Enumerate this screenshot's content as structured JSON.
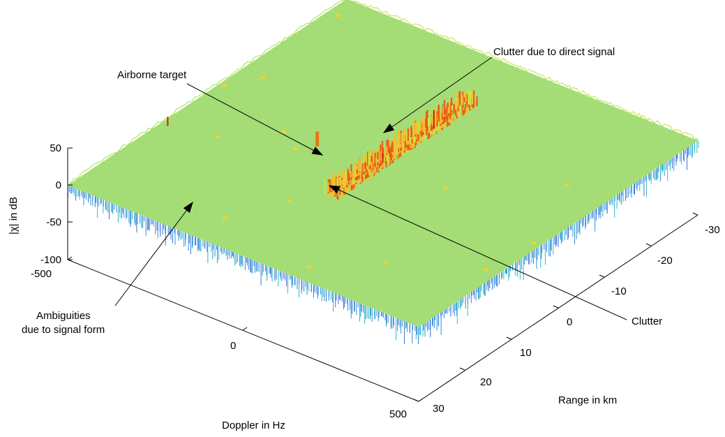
{
  "chart_data": {
    "type": "surface",
    "title": "",
    "xlabel": "Doppler in Hz",
    "ylabel": "Range in km",
    "zlabel": "|χ| in dB",
    "doppler_ticks": [
      "-500",
      "0",
      "500"
    ],
    "doppler_range": [
      -500,
      500
    ],
    "range_ticks": [
      "-30",
      "-20",
      "-10",
      "0",
      "10",
      "20",
      "30"
    ],
    "range_range": [
      -30,
      30
    ],
    "z_ticks": [
      "50",
      "0",
      "-50",
      "-100"
    ],
    "z_range": [
      -100,
      50
    ],
    "baseline_level_db": 0,
    "clutter_ridge": {
      "doppler_hz": 0,
      "range_km": [
        -30,
        0
      ],
      "peak_db": 15
    },
    "features": [
      {
        "label": "Airborne target",
        "doppler_hz": -160,
        "range_km": 2,
        "level_db": 20
      },
      {
        "label": "Clutter due to direct signal",
        "doppler_hz": 0,
        "range_km": -11,
        "level_db": 25
      },
      {
        "label": "Clutter",
        "doppler_hz": 0,
        "range_km": 0,
        "level_db": 12
      },
      {
        "label": "Ambiguities due to signal form",
        "doppler_hz": -480,
        "range_km": 10,
        "level_db": 12
      }
    ],
    "colormap": [
      "#2f6fd6",
      "#26c2c9",
      "#7fe07a",
      "#c8e64a",
      "#f2c12e",
      "#e85d1a",
      "#c81e0a"
    ]
  },
  "annotations": {
    "airborne": "Airborne target",
    "direct": "Clutter due to direct signal",
    "clutter": "Clutter",
    "ambig_line1": "Ambiguities",
    "ambig_line2": "due to signal form"
  }
}
